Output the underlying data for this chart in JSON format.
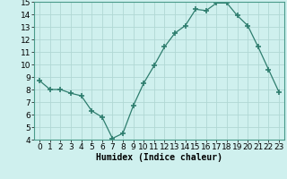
{
  "x": [
    0,
    1,
    2,
    3,
    4,
    5,
    6,
    7,
    8,
    9,
    10,
    11,
    12,
    13,
    14,
    15,
    16,
    17,
    18,
    19,
    20,
    21,
    22,
    23
  ],
  "y": [
    8.7,
    8.0,
    8.0,
    7.7,
    7.5,
    6.3,
    5.8,
    4.1,
    4.5,
    6.7,
    8.5,
    9.9,
    11.4,
    12.5,
    13.1,
    14.4,
    14.3,
    14.9,
    14.9,
    13.9,
    13.1,
    11.4,
    9.6,
    7.8
  ],
  "line_color": "#2e7d6e",
  "marker": "+",
  "marker_size": 5,
  "background_color": "#cff0ee",
  "grid_color": "#b0d8d4",
  "xlabel": "Humidex (Indice chaleur)",
  "xlim": [
    -0.5,
    23.5
  ],
  "ylim": [
    4,
    15
  ],
  "yticks": [
    4,
    5,
    6,
    7,
    8,
    9,
    10,
    11,
    12,
    13,
    14,
    15
  ],
  "xticks": [
    0,
    1,
    2,
    3,
    4,
    5,
    6,
    7,
    8,
    9,
    10,
    11,
    12,
    13,
    14,
    15,
    16,
    17,
    18,
    19,
    20,
    21,
    22,
    23
  ],
  "label_fontsize": 7,
  "tick_fontsize": 6.5
}
